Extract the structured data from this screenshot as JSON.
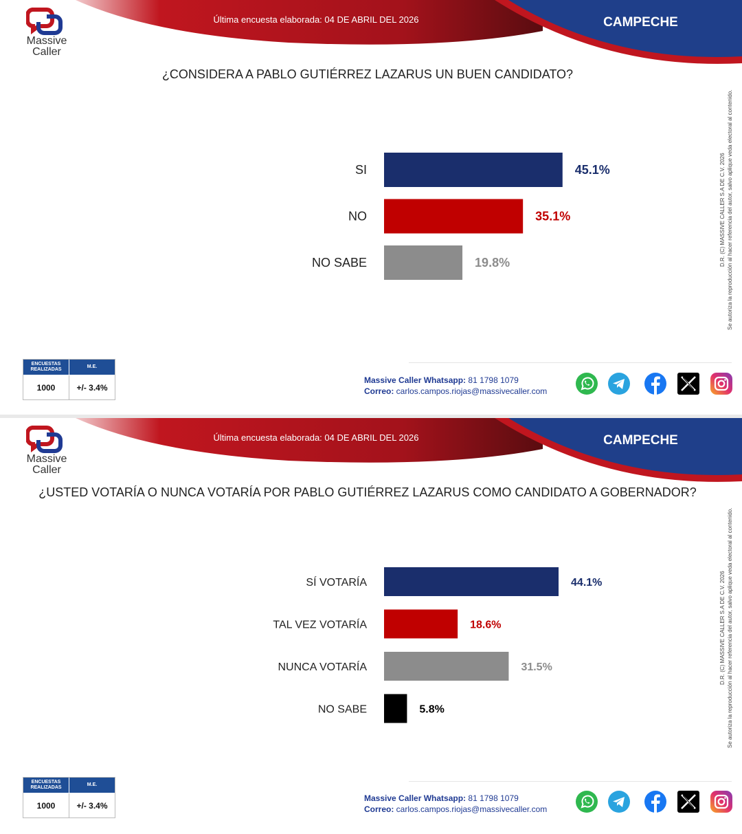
{
  "brand": {
    "line1": "Massive",
    "line2": "Caller"
  },
  "panels": [
    {
      "date_text": "Última encuesta elaborada: 04 DE ABRIL DEL 2026",
      "region": "CAMPECHE",
      "question": "¿CONSIDERA A PABLO GUTIÉRREZ LAZARUS UN BUEN CANDIDATO?",
      "stats": {
        "h1": "ENCUESTAS REALIZADAS",
        "h2": "M.E.",
        "v1": "1000",
        "v2": "+/- 3.4%"
      },
      "contact": {
        "label1": "Massive Caller Whatsapp:",
        "value1": " 81 1798 1079",
        "label2": "Correo:",
        "value2": " carlos.campos.riojas@massivecaller.com"
      },
      "side_text_1": "D.R. (C) MASSIVE CALLER S.A DE C.V. 2026",
      "side_text_2": "Se autoriza la reproducción al hacer referencia del autor, salvo aplique veda electoral al contenido."
    },
    {
      "date_text": "Última encuesta elaborada: 04 DE ABRIL DEL 2026",
      "region": "CAMPECHE",
      "question": "¿USTED VOTARÍA O NUNCA VOTARÍA POR PABLO GUTIÉRREZ LAZARUS COMO CANDIDATO A GOBERNADOR?",
      "stats": {
        "h1": "ENCUESTAS REALIZADAS",
        "h2": "M.E.",
        "v1": "1000",
        "v2": "+/- 3.4%"
      },
      "contact": {
        "label1": "Massive Caller Whatsapp:",
        "value1": " 81 1798 1079",
        "label2": "Correo:",
        "value2": " carlos.campos.riojas@massivecaller.com"
      },
      "side_text_1": "D.R. (C) MASSIVE CALLER S.A DE C.V. 2026",
      "side_text_2": "Se autoriza la reproducción al hacer referencia del autor, salvo aplique veda electoral al contenido."
    }
  ],
  "social_icons": [
    "whatsapp-icon",
    "telegram-icon",
    "facebook-icon",
    "x-icon",
    "instagram-icon"
  ],
  "colors": {
    "navy": "#1a2e6c",
    "red": "#c00000",
    "gray": "#8c8c8c",
    "black": "#000000",
    "header_red": "#c0161f",
    "header_blue": "#1f3f8a"
  },
  "chart_data": [
    {
      "type": "bar",
      "orientation": "horizontal",
      "categories": [
        "SI",
        "NO",
        "NO SABE"
      ],
      "values": [
        45.1,
        35.1,
        19.8
      ],
      "value_labels": [
        "45.1%",
        "35.1%",
        "19.8%"
      ],
      "colors": [
        "#1a2e6c",
        "#c00000",
        "#8c8c8c"
      ],
      "title": "¿CONSIDERA A PABLO GUTIÉRREZ LAZARUS UN BUEN CANDIDATO?"
    },
    {
      "type": "bar",
      "orientation": "horizontal",
      "categories": [
        "SÍ VOTARÍA",
        "TAL VEZ VOTARÍA",
        "NUNCA VOTARÍA",
        "NO SABE"
      ],
      "values": [
        44.1,
        18.6,
        31.5,
        5.8
      ],
      "value_labels": [
        "44.1%",
        "18.6%",
        "31.5%",
        "5.8%"
      ],
      "colors": [
        "#1a2e6c",
        "#c00000",
        "#8c8c8c",
        "#000000"
      ],
      "title": "¿USTED VOTARÍA O NUNCA VOTARÍA POR PABLO GUTIÉRREZ LAZARUS COMO CANDIDATO A GOBERNADOR?"
    }
  ]
}
